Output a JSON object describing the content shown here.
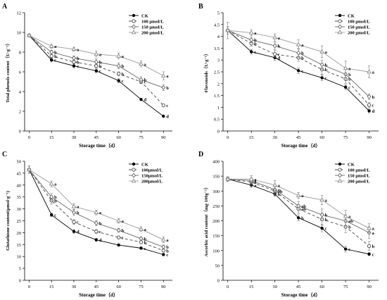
{
  "chart_data": [
    {
      "panel": "A",
      "type": "line",
      "xlabel": "Storage time（d）",
      "ylabel": "Total phenols content（U·g⁻¹）",
      "x": [
        0,
        15,
        30,
        45,
        60,
        75,
        90
      ],
      "xlim": [
        -3,
        96
      ],
      "ylim": [
        0,
        12
      ],
      "yticks": [
        0,
        2,
        4,
        6,
        8,
        10,
        12
      ],
      "legend_position": "top-right",
      "series": [
        {
          "name": "CK",
          "values": [
            9.7,
            7.2,
            6.6,
            6.1,
            5.1,
            3.2,
            1.5
          ],
          "err": [
            0.1,
            0.2,
            0.2,
            0.2,
            0.2,
            0.1,
            0.1
          ],
          "labels": [
            "",
            "c",
            "c",
            "c",
            "c",
            "d",
            "d"
          ]
        },
        {
          "name": "100 μmol/L",
          "values": [
            9.7,
            7.6,
            7.0,
            6.6,
            5.8,
            5.0,
            2.6
          ],
          "err": [
            0.1,
            0.2,
            0.2,
            0.2,
            0.2,
            0.2,
            0.1
          ],
          "labels": [
            "",
            "b",
            "b",
            "b",
            "b",
            "c",
            "c"
          ]
        },
        {
          "name": "150 μmol/L",
          "values": [
            9.7,
            8.0,
            7.4,
            7.0,
            6.6,
            5.2,
            4.4
          ],
          "err": [
            0.1,
            0.2,
            0.2,
            0.3,
            0.3,
            0.3,
            0.3
          ],
          "labels": [
            "",
            "b",
            "b",
            "b",
            "b",
            "b",
            "b"
          ]
        },
        {
          "name": "200 μmol/L",
          "values": [
            9.7,
            8.6,
            8.3,
            7.8,
            7.6,
            6.8,
            5.6
          ],
          "err": [
            0.1,
            0.2,
            0.2,
            0.3,
            0.3,
            0.3,
            0.4
          ],
          "labels": [
            "",
            "a",
            "a",
            "a",
            "a",
            "a",
            "a"
          ]
        }
      ]
    },
    {
      "panel": "B",
      "type": "line",
      "xlabel": "Storage time（d）",
      "ylabel": "Flavonoids（U·g⁻¹）",
      "x": [
        0,
        15,
        30,
        45,
        60,
        75,
        90
      ],
      "xlim": [
        -3,
        96
      ],
      "ylim": [
        0,
        5
      ],
      "yticks": [
        0,
        0.5,
        1,
        1.5,
        2,
        2.5,
        3,
        3.5,
        4,
        4.5,
        5
      ],
      "legend_position": "top-right",
      "series": [
        {
          "name": "CK",
          "values": [
            4.25,
            3.35,
            3.1,
            2.55,
            2.25,
            1.85,
            0.85
          ],
          "err": [
            0.15,
            0.1,
            0.12,
            0.12,
            0.12,
            0.1,
            0.08
          ],
          "labels": [
            "",
            "c",
            "d",
            "c",
            "c",
            "c",
            "d"
          ]
        },
        {
          "name": "100 μmol/L",
          "values": [
            4.25,
            3.7,
            3.25,
            3.1,
            2.6,
            2.2,
            1.1
          ],
          "err": [
            0.15,
            0.12,
            0.15,
            0.15,
            0.2,
            0.2,
            0.1
          ],
          "labels": [
            "",
            "b",
            "c",
            "b",
            "b",
            "b",
            "c"
          ]
        },
        {
          "name": "150 μmol/L",
          "values": [
            4.25,
            3.85,
            3.6,
            3.3,
            2.8,
            2.4,
            1.45
          ],
          "err": [
            0.15,
            0.12,
            0.15,
            0.2,
            0.2,
            0.25,
            0.12
          ],
          "labels": [
            "",
            "b",
            "b",
            "b",
            "b",
            "b",
            "b"
          ]
        },
        {
          "name": "200 μmol/L",
          "values": [
            4.25,
            4.15,
            3.95,
            3.65,
            3.35,
            2.65,
            2.5
          ],
          "err": [
            0.35,
            0.12,
            0.15,
            0.2,
            0.25,
            0.3,
            0.25
          ],
          "labels": [
            "",
            "a",
            "a",
            "a",
            "a",
            "a",
            "a"
          ]
        }
      ]
    },
    {
      "panel": "C",
      "type": "line",
      "xlabel": "Storage time（d）",
      "ylabel": "Glutathione content(μmol·g⁻¹)",
      "x": [
        0,
        15,
        30,
        45,
        60,
        75,
        90
      ],
      "xlim": [
        -3,
        96
      ],
      "ylim": [
        0,
        50
      ],
      "yticks": [
        0,
        5,
        10,
        15,
        20,
        25,
        30,
        35,
        40,
        45,
        50
      ],
      "legend_position": "top-right",
      "series": [
        {
          "name": "CK",
          "values": [
            46.5,
            27.5,
            20.5,
            17.0,
            14.8,
            13.5,
            10.8
          ],
          "err": [
            1.5,
            0.8,
            0.8,
            0.6,
            0.5,
            0.5,
            0.5
          ],
          "labels": [
            "",
            "c",
            "d",
            "d",
            "",
            "c",
            "c"
          ]
        },
        {
          "name": "100μmol/L",
          "values": [
            46.5,
            33.5,
            24.5,
            20.5,
            18.0,
            16.0,
            12.5
          ],
          "err": [
            1.5,
            1.5,
            1.0,
            0.8,
            0.6,
            0.6,
            0.6
          ],
          "labels": [
            "",
            "b",
            "c",
            "c",
            "c",
            "b",
            "b"
          ]
        },
        {
          "name": "150μmol/L",
          "values": [
            46.5,
            35.0,
            28.5,
            24.0,
            21.0,
            17.5,
            14.0
          ],
          "err": [
            1.5,
            1.5,
            1.2,
            1.0,
            0.8,
            0.8,
            0.8
          ],
          "labels": [
            "",
            "b",
            "b",
            "b",
            "b",
            "b",
            "b"
          ]
        },
        {
          "name": "200μmol/L",
          "values": [
            46.5,
            40.5,
            31.0,
            28.5,
            25.0,
            21.5,
            17.0
          ],
          "err": [
            1.5,
            1.2,
            1.2,
            1.0,
            1.0,
            1.0,
            1.2
          ],
          "labels": [
            "",
            "a",
            "a",
            "a",
            "a",
            "a",
            "a"
          ]
        }
      ]
    },
    {
      "panel": "D",
      "type": "line",
      "xlabel": "Storage time（d）",
      "ylabel": "Ascorbic acid content（mg·100g⁻¹）",
      "x": [
        0,
        15,
        30,
        45,
        60,
        75,
        90
      ],
      "xlim": [
        -3,
        96
      ],
      "ylim": [
        0,
        400
      ],
      "yticks": [
        0,
        50,
        100,
        150,
        200,
        250,
        300,
        350,
        400
      ],
      "legend_position": "top-right",
      "series": [
        {
          "name": "CK",
          "values": [
            340,
            320,
            290,
            210,
            175,
            105,
            88
          ],
          "err": [
            8,
            8,
            8,
            10,
            12,
            10,
            5
          ],
          "labels": [
            "",
            "a",
            "b",
            "b",
            "c",
            "c",
            "c"
          ]
        },
        {
          "name": "100 μmol/L",
          "values": [
            340,
            330,
            300,
            240,
            205,
            180,
            115
          ],
          "err": [
            8,
            10,
            15,
            15,
            20,
            20,
            15
          ],
          "labels": [
            "",
            "a",
            "ab",
            "ab",
            "b",
            "b",
            "b"
          ]
        },
        {
          "name": "150 μmol/L",
          "values": [
            340,
            335,
            305,
            250,
            220,
            200,
            160
          ],
          "err": [
            8,
            10,
            15,
            15,
            20,
            20,
            20
          ],
          "labels": [
            "",
            "a",
            "a",
            "ab",
            "b",
            "ab",
            "a"
          ]
        },
        {
          "name": "200 μmol/L",
          "values": [
            340,
            340,
            320,
            285,
            270,
            215,
            175
          ],
          "err": [
            8,
            12,
            15,
            10,
            15,
            20,
            15
          ],
          "labels": [
            "",
            "a",
            "a",
            "a",
            "a",
            "a",
            "a"
          ]
        }
      ]
    }
  ]
}
